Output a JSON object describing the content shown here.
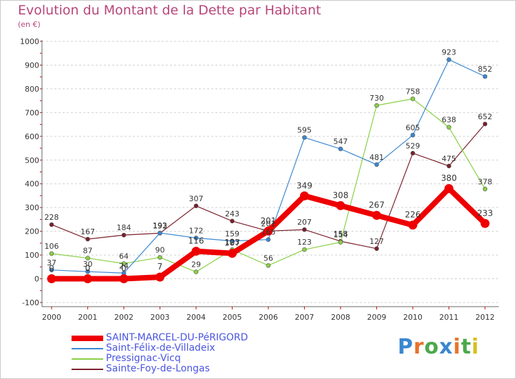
{
  "header": {
    "title": "Evolution du Montant de la Dette par Habitant",
    "unit": "(en €)"
  },
  "logo": {
    "text": "Proxiti",
    "letter_colors": [
      "#3a87d0",
      "#e8722a",
      "#4ca84c",
      "#3a87d0",
      "#e8722a",
      "#4ca84c",
      "#d8c020"
    ]
  },
  "chart_data": {
    "type": "line",
    "title": "Evolution du Montant de la Dette par Habitant",
    "subtitle": "(en €)",
    "xlabel": "",
    "ylabel": "",
    "x": [
      "2000",
      "2001",
      "2002",
      "2003",
      "2004",
      "2005",
      "2006",
      "2007",
      "2008",
      "2009",
      "2010",
      "2011",
      "2012"
    ],
    "ylim": [
      -100,
      1000
    ],
    "yticks": [
      -100,
      0,
      100,
      200,
      300,
      400,
      500,
      600,
      700,
      800,
      900,
      1000
    ],
    "grid": "horizontal dashed",
    "legend_position": "bottom-left",
    "series": [
      {
        "name": "Sainte-Foy-de-Longas",
        "color": "#7a1f2b",
        "values": [
          228,
          167,
          184,
          192,
          307,
          243,
          201,
          207,
          158,
          127,
          529,
          475,
          652
        ]
      },
      {
        "name": "Pressignac-Vicq",
        "color": "#88d044",
        "values": [
          106,
          87,
          64,
          90,
          29,
          123,
          56,
          123,
          154,
          730,
          758,
          638,
          378
        ]
      },
      {
        "name": "Saint-Félix-de-Villadeix",
        "color": "#3a87d0",
        "values": [
          37,
          30,
          24,
          193,
          172,
          159,
          165,
          595,
          547,
          481,
          605,
          923,
          852
        ]
      },
      {
        "name": "SAINT-MARCEL-DU-PéRIGORD",
        "color": "#ee0000",
        "values": [
          0,
          0,
          0,
          7,
          116,
          107,
          201,
          349,
          308,
          267,
          226,
          380,
          233
        ]
      }
    ],
    "legend": [
      {
        "name": "SAINT-MARCEL-DU-PéRIGORD",
        "color": "#ee0000"
      },
      {
        "name": "Saint-Félix-de-Villadeix",
        "color": "#3a87d0"
      },
      {
        "name": "Pressignac-Vicq",
        "color": "#88d044"
      },
      {
        "name": "Sainte-Foy-de-Longas",
        "color": "#7a1f2b"
      }
    ]
  }
}
